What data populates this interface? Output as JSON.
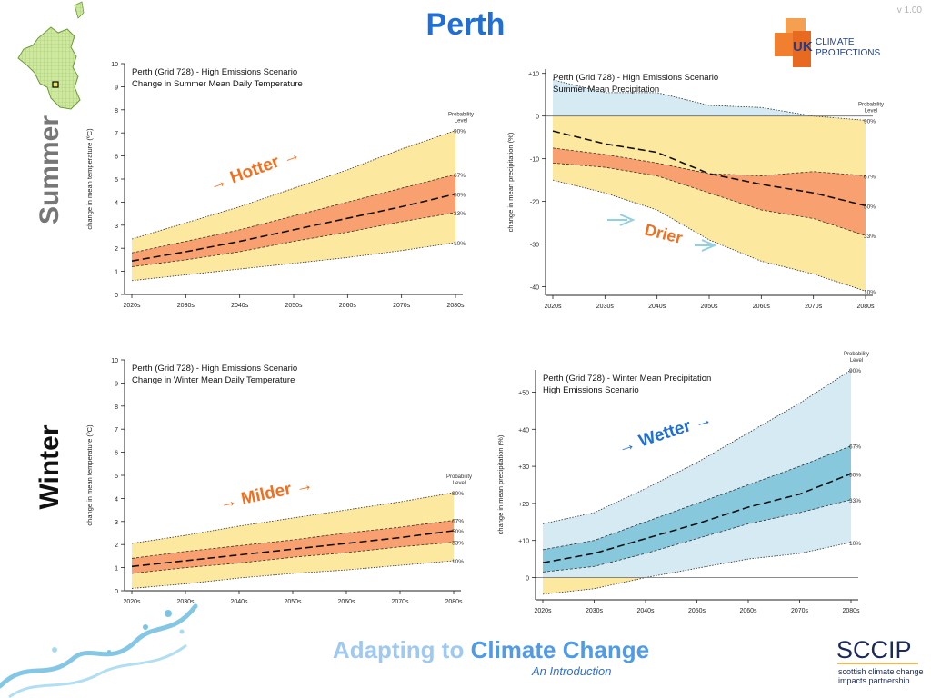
{
  "header": {
    "title": "Perth",
    "version": "v 1.00"
  },
  "logo": {
    "uk": "UK",
    "climate": "CLIMATE",
    "projections": "PROJECTIONS"
  },
  "seasons": {
    "summer": "Summer",
    "winter": "Winter"
  },
  "footer": {
    "title_part1": "Adapting to",
    "title_part2": "Climate Change",
    "subtitle": "An Introduction",
    "sccip": "SCCIP",
    "sccip_sub1": "scottish climate change",
    "sccip_sub2": "impacts partnership"
  },
  "colors": {
    "outer_warm": "#fde8a0",
    "inner_warm": "#f9a070",
    "outer_cool": "#d6eaf4",
    "inner_cool": "#88c8dc",
    "arrow_orange": "#f07020",
    "arrow_teal": "#90d0e0",
    "arrow_blue": "#1f6fd6"
  },
  "chart_data": [
    {
      "id": "summer_temp",
      "type": "area",
      "title_line1": "Perth (Grid 728) - High Emissions Scenario",
      "title_line2": "Change in Summer Mean Daily Temperature",
      "xlabel": "",
      "ylabel": "change in  mean temperature (ºC)",
      "x": [
        "2020s",
        "2030s",
        "2040s",
        "2050s",
        "2060s",
        "2070s",
        "2080s"
      ],
      "ylim": [
        0,
        10
      ],
      "yticks": [
        "0",
        "1",
        "2",
        "3",
        "4",
        "5",
        "6",
        "7",
        "8",
        "9",
        "10"
      ],
      "ytick_values": [
        0,
        1,
        2,
        3,
        4,
        5,
        6,
        7,
        8,
        9,
        10
      ],
      "legend_title": [
        "Probability",
        "Level"
      ],
      "annotation": "→ Hotter →",
      "series": [
        {
          "name": "90%",
          "values": [
            2.4,
            3.1,
            3.8,
            4.6,
            5.4,
            6.3,
            7.1
          ]
        },
        {
          "name": "67%",
          "values": [
            1.8,
            2.3,
            2.8,
            3.4,
            4.0,
            4.6,
            5.2
          ]
        },
        {
          "name": "50%",
          "values": [
            1.45,
            1.85,
            2.3,
            2.8,
            3.3,
            3.8,
            4.35
          ]
        },
        {
          "name": "33%",
          "values": [
            1.2,
            1.5,
            1.85,
            2.3,
            2.7,
            3.15,
            3.55
          ]
        },
        {
          "name": "10%",
          "values": [
            0.6,
            0.85,
            1.1,
            1.35,
            1.6,
            1.9,
            2.25
          ]
        }
      ]
    },
    {
      "id": "summer_precip",
      "type": "area",
      "title_line1": "Perth (Grid 728) - High Emissions Scenario",
      "title_line2": "Summer Mean Precipitation",
      "xlabel": "",
      "ylabel": "change in mean precipitation (%)",
      "x": [
        "2020s",
        "2030s",
        "2040s",
        "2050s",
        "2060s",
        "2070s",
        "2080s"
      ],
      "ylim": [
        -42,
        11
      ],
      "yticks": [
        "+10",
        "0",
        "-10",
        "-20",
        "-30",
        "-40"
      ],
      "ytick_values": [
        10,
        0,
        -10,
        -20,
        -30,
        -40
      ],
      "legend_title": [
        "Probability",
        "Level"
      ],
      "annotation": "Drier",
      "series": [
        {
          "name": "90%",
          "values": [
            8.5,
            5.5,
            5.5,
            2.5,
            2,
            0,
            -1
          ]
        },
        {
          "name": "67%",
          "values": [
            -7.5,
            -9,
            -11,
            -13.5,
            -14,
            -13,
            -14
          ]
        },
        {
          "name": "50%",
          "values": [
            -3.5,
            -6.5,
            -8.5,
            -13.5,
            -16,
            -18,
            -21
          ]
        },
        {
          "name": "33%",
          "values": [
            -11,
            -12,
            -14,
            -18,
            -22,
            -24,
            -28
          ]
        },
        {
          "name": "10%",
          "values": [
            -15,
            -18,
            -22,
            -29,
            -34,
            -37,
            -41
          ]
        }
      ]
    },
    {
      "id": "winter_temp",
      "type": "area",
      "title_line1": "Perth (Grid 728) - High Emissions Scenario",
      "title_line2": "Change in Winter Mean Daily Temperature",
      "xlabel": "",
      "ylabel": "change in  mean temperature (ºC)",
      "x": [
        "2020s",
        "2030s",
        "2040s",
        "2050s",
        "2060s",
        "2070s",
        "2080s"
      ],
      "ylim": [
        0,
        10
      ],
      "yticks": [
        "0",
        "1",
        "2",
        "3",
        "4",
        "5",
        "6",
        "7",
        "8",
        "9",
        "10"
      ],
      "ytick_values": [
        0,
        1,
        2,
        3,
        4,
        5,
        6,
        7,
        8,
        9,
        10
      ],
      "legend_title": [
        "Probability",
        "Level"
      ],
      "annotation": "→ Milder →",
      "series": [
        {
          "name": "90%",
          "values": [
            2.05,
            2.4,
            2.8,
            3.15,
            3.5,
            3.85,
            4.25
          ]
        },
        {
          "name": "67%",
          "values": [
            1.4,
            1.7,
            1.95,
            2.2,
            2.5,
            2.75,
            3.05
          ]
        },
        {
          "name": "50%",
          "values": [
            1.05,
            1.3,
            1.55,
            1.8,
            2.05,
            2.3,
            2.6
          ]
        },
        {
          "name": "33%",
          "values": [
            0.75,
            1.0,
            1.2,
            1.45,
            1.65,
            1.9,
            2.1
          ]
        },
        {
          "name": "10%",
          "values": [
            0.1,
            0.3,
            0.55,
            0.75,
            0.9,
            1.1,
            1.3
          ]
        }
      ]
    },
    {
      "id": "winter_precip",
      "type": "area",
      "title_line1": "Perth (Grid 728) - Winter Mean Precipitation",
      "title_line2": "High Emissions Scenario",
      "xlabel": "",
      "ylabel": "change in mean precipitation (%)",
      "x": [
        "2020s",
        "2030s",
        "2040s",
        "2050s",
        "2060s",
        "2070s",
        "2080s"
      ],
      "ylim": [
        -6,
        56
      ],
      "yticks": [
        "0",
        "+10",
        "+20",
        "+30",
        "+40",
        "+50"
      ],
      "ytick_values": [
        0,
        10,
        20,
        30,
        40,
        50
      ],
      "legend_title": [
        "Probability",
        "Level"
      ],
      "annotation": "→ Wetter →",
      "series": [
        {
          "name": "90%",
          "values": [
            14.5,
            17.5,
            24,
            31,
            39,
            47,
            56
          ]
        },
        {
          "name": "67%",
          "values": [
            7.5,
            10,
            15,
            20,
            25,
            30,
            35.5
          ]
        },
        {
          "name": "50%",
          "values": [
            4,
            6.5,
            10.5,
            14.5,
            19,
            22.5,
            28
          ]
        },
        {
          "name": "33%",
          "values": [
            1.5,
            3,
            6.5,
            10.5,
            14.5,
            17.5,
            21
          ]
        },
        {
          "name": "10%",
          "values": [
            -4.5,
            -3,
            0,
            2.5,
            5,
            6.5,
            9.5
          ]
        }
      ]
    }
  ]
}
